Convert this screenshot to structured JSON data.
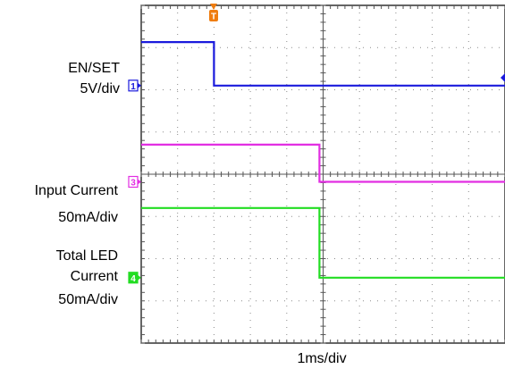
{
  "chart_data": {
    "type": "line",
    "title": "",
    "xlabel": "1ms/div",
    "x_divisions": 10,
    "y_divisions": 8,
    "grid": true,
    "trigger_marker": "T",
    "channel_labels": [
      {
        "channel": "1",
        "lines": [
          "EN/SET",
          "5V/div"
        ]
      },
      {
        "channel": "3",
        "lines": [
          "Input Current",
          "50mA/div"
        ]
      },
      {
        "channel": "4",
        "lines": [
          "Total LED",
          "Current",
          "50mA/div"
        ]
      }
    ],
    "series": [
      {
        "channel": "1",
        "color": "#1a1adc",
        "x": [
          0,
          2.0,
          2.0,
          10.0
        ],
        "y": [
          7.13,
          7.13,
          6.1,
          6.1
        ]
      },
      {
        "channel": "3",
        "color": "#e22ee2",
        "x": [
          0,
          4.9,
          4.9,
          10.0
        ],
        "y": [
          4.7,
          4.7,
          3.82,
          3.82
        ]
      },
      {
        "channel": "4",
        "color": "#22dd22",
        "x": [
          0,
          4.9,
          4.9,
          10.0
        ],
        "y": [
          3.2,
          3.2,
          1.55,
          1.55
        ]
      }
    ]
  }
}
